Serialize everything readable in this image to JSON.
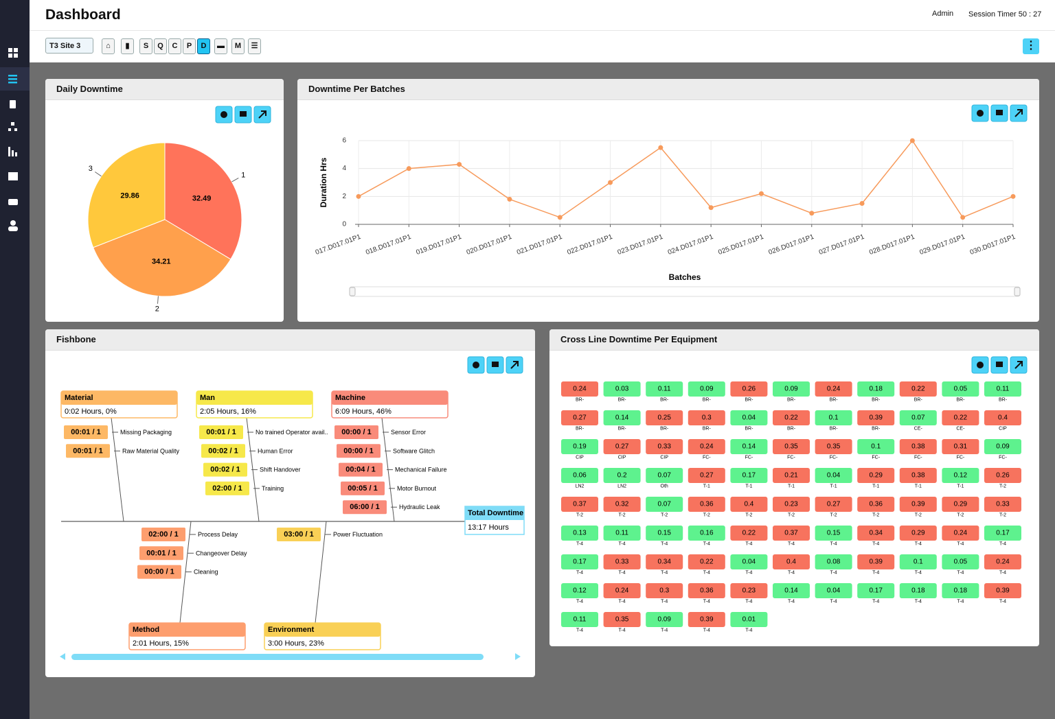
{
  "header": {
    "title": "Dashboard",
    "user": "Admin",
    "session": "Session Timer 50 : 27"
  },
  "toolbar": {
    "site": "T3 Site 3",
    "buttons": [
      "S",
      "Q",
      "C",
      "P",
      "D",
      "M"
    ]
  },
  "chart_data": [
    {
      "type": "pie",
      "title": "Daily Downtime",
      "categories": [
        "1",
        "2",
        "3"
      ],
      "values": [
        32.49,
        34.21,
        29.86
      ],
      "colors": [
        "#ff735a",
        "#ffa04c",
        "#ffc83c"
      ]
    },
    {
      "type": "line",
      "title": "Downtime Per Batches",
      "x_label": "Batches",
      "y_label": "Duration Hrs",
      "categories": [
        "017.D017.01P1",
        "018.D017.01P1",
        "019.D017.01P1",
        "020.D017.01P1",
        "021.D017.01P1",
        "022.D017.01P1",
        "023.D017.01P1",
        "024.D017.01P1",
        "025.D017.01P1",
        "026.D017.01P1",
        "027.D017.01P1",
        "028.D017.01P1",
        "029.D017.01P1",
        "030.D017.01P1"
      ],
      "values": [
        2.0,
        4.0,
        4.3,
        1.8,
        0.5,
        3.0,
        5.5,
        1.2,
        2.2,
        0.8,
        1.5,
        6.0,
        0.5,
        2.0
      ],
      "color": "#f79a5b",
      "ylim": [
        0,
        6
      ],
      "yticks": [
        0,
        2,
        4,
        6
      ],
      "grid": true
    }
  ],
  "fishbone": {
    "title": "Fishbone",
    "total": {
      "label": "Total Downtime",
      "value": "13:17 Hours"
    },
    "categories": [
      {
        "name": "Material",
        "summary": "0:02 Hours, 0%",
        "color": "#fdb865",
        "causes": [
          {
            "value": "00:01 / 1",
            "label": "Missing Packaging"
          },
          {
            "value": "00:01 / 1",
            "label": "Raw Material Quality"
          }
        ]
      },
      {
        "name": "Man",
        "summary": "2:05 Hours, 16%",
        "color": "#f6e84a",
        "causes": [
          {
            "value": "00:01 / 1",
            "label": "No trained Operator avail.."
          },
          {
            "value": "00:02 / 1",
            "label": "Human Error"
          },
          {
            "value": "00:02 / 1",
            "label": "Shift Handover"
          },
          {
            "value": "02:00 / 1",
            "label": "Training"
          }
        ]
      },
      {
        "name": "Machine",
        "summary": "6:09 Hours, 46%",
        "color": "#f98b7a",
        "causes": [
          {
            "value": "00:00 / 1",
            "label": "Sensor Error"
          },
          {
            "value": "00:00 / 1",
            "label": "Software Glitch"
          },
          {
            "value": "00:04 / 1",
            "label": "Mechanical Failure"
          },
          {
            "value": "00:05 / 1",
            "label": "Motor Burnout"
          },
          {
            "value": "06:00 / 1",
            "label": "Hydraulic Leak"
          }
        ]
      },
      {
        "name": "Method",
        "summary": "2:01 Hours, 15%",
        "color": "#fd9e6e",
        "causes": [
          {
            "value": "02:00 / 1",
            "label": "Process Delay"
          },
          {
            "value": "00:01 / 1",
            "label": "Changeover Delay"
          },
          {
            "value": "00:00 / 1",
            "label": "Cleaning"
          }
        ]
      },
      {
        "name": "Environment",
        "summary": "3:00 Hours, 23%",
        "color": "#f9d056",
        "causes": [
          {
            "value": "03:00 / 1",
            "label": "Power Fluctuation"
          }
        ]
      }
    ]
  },
  "equipment": {
    "title": "Cross Line Downtime Per Equipment",
    "values": [
      0.24,
      0.03,
      0.11,
      0.09,
      0.26,
      0.09,
      0.24,
      0.18,
      0.22,
      0.05,
      0.11,
      0.27,
      0.14,
      0.25,
      0.3,
      0.04,
      0.22,
      0.1,
      0.39,
      0.07,
      0.22,
      0.4,
      0.19,
      0.27,
      0.33,
      0.24,
      0.14,
      0.35,
      0.35,
      0.1,
      0.38,
      0.31,
      0.09,
      0.06,
      0.2,
      0.07,
      0.27,
      0.17,
      0.21,
      0.04,
      0.29,
      0.38,
      0.12,
      0.26,
      0.37,
      0.32,
      0.07,
      0.36,
      0.4,
      0.23,
      0.27,
      0.36,
      0.39,
      0.29,
      0.33,
      0.13,
      0.11,
      0.15,
      0.16,
      0.22,
      0.37,
      0.15,
      0.34,
      0.29,
      0.24,
      0.17,
      0.17,
      0.33,
      0.34,
      0.22,
      0.04,
      0.4,
      0.08,
      0.39,
      0.1,
      0.05,
      0.24,
      0.12,
      0.24,
      0.3,
      0.36,
      0.23,
      0.14,
      0.04,
      0.17,
      0.18,
      0.18,
      0.39,
      0.11,
      0.35,
      0.09,
      0.39,
      0.01
    ],
    "labels": [
      "BR-",
      "BR-",
      "BR-",
      "BR-",
      "BR-",
      "BR-",
      "BR-",
      "BR-",
      "BR-",
      "BR-",
      "BR-",
      "BR-",
      "BR-",
      "BR-",
      "BR-",
      "BR-",
      "BR-",
      "BR-",
      "BR-",
      "CE-",
      "CE-",
      "CIP",
      "CIP",
      "CIP",
      "CIP",
      "FC-",
      "FC-",
      "FC-",
      "FC-",
      "FC-",
      "FC-",
      "FC-",
      "FC-",
      "LN2",
      "LN2",
      "Oth",
      "T-1",
      "T-1",
      "T-1",
      "T-1",
      "T-1",
      "T-1",
      "T-1",
      "T-2",
      "T-2",
      "T-2",
      "T-2",
      "T-2",
      "T-2",
      "T-2",
      "T-2",
      "T-2",
      "T-2",
      "T-2",
      "T-2",
      "T-4",
      "T-4",
      "T-4",
      "T-4",
      "T-4",
      "T-4",
      "T-4",
      "T-4",
      "T-4",
      "T-4",
      "T-4",
      "T-4",
      "T-4",
      "T-4",
      "T-4",
      "T-4",
      "T-4",
      "T-4",
      "T-4",
      "T-4",
      "T-4",
      "T-4",
      "T-4",
      "T-4",
      "T-4",
      "T-4",
      "T-4",
      "T-4",
      "T-4",
      "T-4",
      "T-4",
      "T-4",
      "T-4",
      "T-4",
      "T-4",
      "T-4",
      "T-4",
      "T-4"
    ],
    "colors": [
      "#f7735e",
      "#5ef28e",
      "#5ef28e",
      "#5ef28e",
      "#f7735e",
      "#5ef28e",
      "#f7735e",
      "#5ef28e",
      "#f7735e",
      "#5ef28e",
      "#5ef28e",
      "#f7735e",
      "#5ef28e",
      "#f7735e",
      "#f7735e",
      "#5ef28e",
      "#f7735e",
      "#5ef28e",
      "#f7735e",
      "#5ef28e",
      "#f7735e",
      "#f7735e",
      "#5ef28e",
      "#f7735e",
      "#f7735e",
      "#f7735e",
      "#5ef28e",
      "#f7735e",
      "#f7735e",
      "#5ef28e",
      "#f7735e",
      "#f7735e",
      "#5ef28e",
      "#5ef28e",
      "#5ef28e",
      "#5ef28e",
      "#f7735e",
      "#5ef28e",
      "#f7735e",
      "#5ef28e",
      "#f7735e",
      "#f7735e",
      "#5ef28e",
      "#f7735e",
      "#f7735e",
      "#f7735e",
      "#5ef28e",
      "#f7735e",
      "#f7735e",
      "#f7735e",
      "#f7735e",
      "#f7735e",
      "#f7735e",
      "#f7735e",
      "#f7735e",
      "#5ef28e",
      "#5ef28e",
      "#5ef28e",
      "#5ef28e",
      "#f7735e",
      "#f7735e",
      "#5ef28e",
      "#f7735e",
      "#f7735e",
      "#f7735e",
      "#5ef28e",
      "#5ef28e",
      "#f7735e",
      "#f7735e",
      "#f7735e",
      "#5ef28e",
      "#f7735e",
      "#5ef28e",
      "#f7735e",
      "#5ef28e",
      "#5ef28e",
      "#f7735e",
      "#5ef28e",
      "#f7735e",
      "#f7735e",
      "#f7735e",
      "#f7735e",
      "#5ef28e",
      "#5ef28e",
      "#5ef28e",
      "#5ef28e",
      "#5ef28e",
      "#f7735e",
      "#5ef28e",
      "#f7735e",
      "#5ef28e",
      "#f7735e",
      "#5ef28e"
    ]
  }
}
